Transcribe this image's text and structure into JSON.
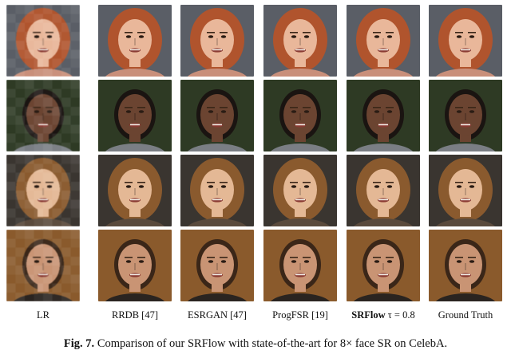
{
  "columns": [
    {
      "label": "LR",
      "pixelated": true
    },
    {
      "label": "RRDB [47]"
    },
    {
      "label": "ESRGAN [47]"
    },
    {
      "label": "ProgFSR [19]"
    },
    {
      "label_bold": "SRFlow",
      "label_rest": " τ = 0.8"
    },
    {
      "label": "Ground Truth"
    }
  ],
  "rows": [
    {
      "bg": "#5a5e66",
      "skin": "#e9b79a",
      "hair": "#b0542d",
      "shirt": "#c98f7a",
      "dark_hair": false
    },
    {
      "bg": "#2e3a24",
      "skin": "#6b4431",
      "hair": "#1a1411",
      "shirt": "#7a7e84",
      "dark_hair": true
    },
    {
      "bg": "#3a3530",
      "skin": "#e4b895",
      "hair": "#8a5a2e",
      "shirt": "#5a4a3c",
      "dark_hair": false
    },
    {
      "bg": "#8a5a2c",
      "skin": "#c99474",
      "hair": "#3a2618",
      "shirt": "#2a2420",
      "dark_hair": true
    }
  ],
  "caption": {
    "label": "Fig. 7.",
    "text": " Comparison of our SRFlow with state-of-the-art for 8× face SR on CelebA."
  }
}
